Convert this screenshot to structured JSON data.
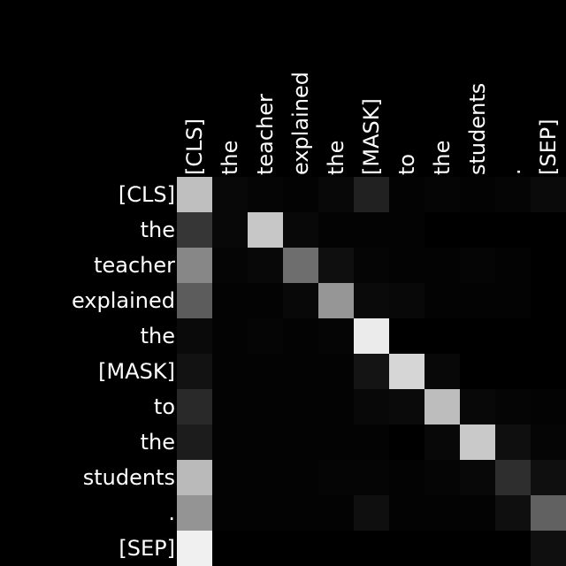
{
  "chart_data": {
    "type": "heatmap",
    "title": "",
    "xlabel": "",
    "ylabel": "",
    "colormap": "grayscale",
    "background": "#000000",
    "label_color": "#ffffff",
    "value_range": [
      0,
      1
    ],
    "x_tokens": [
      "[CLS]",
      "the",
      "teacher",
      "explained",
      "the",
      "[MASK]",
      "to",
      "the",
      "students",
      ".",
      "[SEP]"
    ],
    "y_tokens": [
      "[CLS]",
      "the",
      "teacher",
      "explained",
      "the",
      "[MASK]",
      "to",
      "the",
      "students",
      ".",
      "[SEP]"
    ],
    "values": [
      [
        0.75,
        0.03,
        0.02,
        0.01,
        0.03,
        0.13,
        0.01,
        0.02,
        0.01,
        0.02,
        0.04
      ],
      [
        0.21,
        0.03,
        0.78,
        0.03,
        0.01,
        0.01,
        0.01,
        0.0,
        0.0,
        0.0,
        0.0
      ],
      [
        0.53,
        0.02,
        0.03,
        0.43,
        0.06,
        0.02,
        0.01,
        0.01,
        0.02,
        0.01,
        0.0
      ],
      [
        0.36,
        0.01,
        0.01,
        0.03,
        0.59,
        0.04,
        0.03,
        0.01,
        0.01,
        0.01,
        0.0
      ],
      [
        0.04,
        0.01,
        0.02,
        0.01,
        0.02,
        0.92,
        0.0,
        0.0,
        0.0,
        0.0,
        0.0
      ],
      [
        0.07,
        0.01,
        0.01,
        0.01,
        0.01,
        0.08,
        0.84,
        0.03,
        0.0,
        0.0,
        0.0
      ],
      [
        0.16,
        0.01,
        0.01,
        0.01,
        0.01,
        0.03,
        0.04,
        0.74,
        0.03,
        0.02,
        0.01
      ],
      [
        0.11,
        0.01,
        0.01,
        0.01,
        0.01,
        0.01,
        0.0,
        0.03,
        0.79,
        0.06,
        0.02
      ],
      [
        0.73,
        0.01,
        0.01,
        0.01,
        0.02,
        0.02,
        0.01,
        0.02,
        0.03,
        0.18,
        0.06
      ],
      [
        0.58,
        0.01,
        0.01,
        0.01,
        0.01,
        0.06,
        0.01,
        0.01,
        0.01,
        0.06,
        0.38
      ],
      [
        0.94,
        0.0,
        0.0,
        0.0,
        0.0,
        0.0,
        0.0,
        0.0,
        0.0,
        0.0,
        0.06
      ]
    ]
  }
}
